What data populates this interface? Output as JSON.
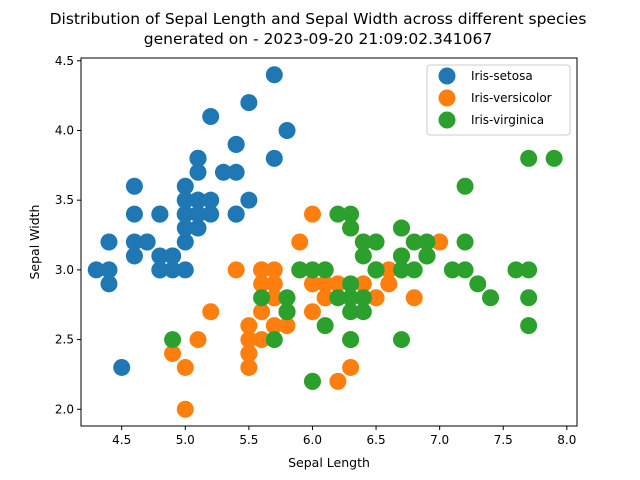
{
  "chart_data": {
    "type": "scatter",
    "title_line1": "Distribution of Sepal Length and Sepal Width across different species",
    "title_line2": "generated on - 2023-09-20 21:09:02.341067",
    "xlabel": "Sepal Length",
    "ylabel": "Sepal Width",
    "xlim": [
      4.18,
      8.08
    ],
    "ylim": [
      1.88,
      4.52
    ],
    "xticks": [
      4.5,
      5.0,
      5.5,
      6.0,
      6.5,
      7.0,
      7.5,
      8.0
    ],
    "xtick_labels": [
      "4.5",
      "5.0",
      "5.5",
      "6.0",
      "6.5",
      "7.0",
      "7.5",
      "8.0"
    ],
    "yticks": [
      2.0,
      2.5,
      3.0,
      3.5,
      4.0,
      4.5
    ],
    "ytick_labels": [
      "2.0",
      "2.5",
      "3.0",
      "3.5",
      "4.0",
      "4.5"
    ],
    "grid": false,
    "legend_position": "top-right",
    "series": [
      {
        "name": "Iris-setosa",
        "color": "#1f77b4",
        "points": [
          [
            5.1,
            3.5
          ],
          [
            4.9,
            3.0
          ],
          [
            4.7,
            3.2
          ],
          [
            4.6,
            3.1
          ],
          [
            5.0,
            3.6
          ],
          [
            5.4,
            3.9
          ],
          [
            4.6,
            3.4
          ],
          [
            5.0,
            3.4
          ],
          [
            4.4,
            2.9
          ],
          [
            4.9,
            3.1
          ],
          [
            5.4,
            3.7
          ],
          [
            4.8,
            3.4
          ],
          [
            4.8,
            3.0
          ],
          [
            4.3,
            3.0
          ],
          [
            5.8,
            4.0
          ],
          [
            5.7,
            4.4
          ],
          [
            5.4,
            3.9
          ],
          [
            5.1,
            3.5
          ],
          [
            5.7,
            3.8
          ],
          [
            5.1,
            3.8
          ],
          [
            5.4,
            3.4
          ],
          [
            5.1,
            3.7
          ],
          [
            4.6,
            3.6
          ],
          [
            5.1,
            3.3
          ],
          [
            4.8,
            3.4
          ],
          [
            5.0,
            3.0
          ],
          [
            5.0,
            3.4
          ],
          [
            5.2,
            3.5
          ],
          [
            5.2,
            3.4
          ],
          [
            4.7,
            3.2
          ],
          [
            4.8,
            3.1
          ],
          [
            5.4,
            3.4
          ],
          [
            5.2,
            4.1
          ],
          [
            5.5,
            4.2
          ],
          [
            4.9,
            3.1
          ],
          [
            5.0,
            3.2
          ],
          [
            5.5,
            3.5
          ],
          [
            4.9,
            3.1
          ],
          [
            4.4,
            3.0
          ],
          [
            5.1,
            3.4
          ],
          [
            5.0,
            3.5
          ],
          [
            4.5,
            2.3
          ],
          [
            4.4,
            3.2
          ],
          [
            5.0,
            3.5
          ],
          [
            5.1,
            3.8
          ],
          [
            4.8,
            3.0
          ],
          [
            5.1,
            3.8
          ],
          [
            4.6,
            3.2
          ],
          [
            5.3,
            3.7
          ],
          [
            5.0,
            3.3
          ]
        ]
      },
      {
        "name": "Iris-versicolor",
        "color": "#ff7f0e",
        "points": [
          [
            7.0,
            3.2
          ],
          [
            6.4,
            3.2
          ],
          [
            6.9,
            3.1
          ],
          [
            5.5,
            2.3
          ],
          [
            6.5,
            2.8
          ],
          [
            5.7,
            2.8
          ],
          [
            6.3,
            3.3
          ],
          [
            4.9,
            2.4
          ],
          [
            6.6,
            2.9
          ],
          [
            5.2,
            2.7
          ],
          [
            5.0,
            2.0
          ],
          [
            5.9,
            3.0
          ],
          [
            6.0,
            2.2
          ],
          [
            6.1,
            2.9
          ],
          [
            5.6,
            2.9
          ],
          [
            6.7,
            3.1
          ],
          [
            5.6,
            3.0
          ],
          [
            5.8,
            2.7
          ],
          [
            6.2,
            2.2
          ],
          [
            5.6,
            2.5
          ],
          [
            5.9,
            3.2
          ],
          [
            6.1,
            2.8
          ],
          [
            6.3,
            2.5
          ],
          [
            6.1,
            2.8
          ],
          [
            6.4,
            2.9
          ],
          [
            6.6,
            3.0
          ],
          [
            6.8,
            2.8
          ],
          [
            6.7,
            3.0
          ],
          [
            6.0,
            2.9
          ],
          [
            5.7,
            2.6
          ],
          [
            5.5,
            2.4
          ],
          [
            5.5,
            2.4
          ],
          [
            5.8,
            2.7
          ],
          [
            6.0,
            2.7
          ],
          [
            5.4,
            3.0
          ],
          [
            6.0,
            3.4
          ],
          [
            6.7,
            3.1
          ],
          [
            6.3,
            2.3
          ],
          [
            5.6,
            3.0
          ],
          [
            5.5,
            2.5
          ],
          [
            5.5,
            2.6
          ],
          [
            6.1,
            3.0
          ],
          [
            5.8,
            2.6
          ],
          [
            5.0,
            2.3
          ],
          [
            5.6,
            2.7
          ],
          [
            5.7,
            3.0
          ],
          [
            5.7,
            2.9
          ],
          [
            6.2,
            2.9
          ],
          [
            5.1,
            2.5
          ],
          [
            5.7,
            2.8
          ]
        ]
      },
      {
        "name": "Iris-virginica",
        "color": "#2ca02c",
        "points": [
          [
            6.3,
            3.3
          ],
          [
            5.8,
            2.7
          ],
          [
            7.1,
            3.0
          ],
          [
            6.3,
            2.9
          ],
          [
            6.5,
            3.0
          ],
          [
            7.6,
            3.0
          ],
          [
            4.9,
            2.5
          ],
          [
            7.3,
            2.9
          ],
          [
            6.7,
            2.5
          ],
          [
            7.2,
            3.6
          ],
          [
            6.5,
            3.2
          ],
          [
            6.4,
            2.7
          ],
          [
            6.8,
            3.0
          ],
          [
            5.7,
            2.5
          ],
          [
            5.8,
            2.8
          ],
          [
            6.4,
            3.2
          ],
          [
            6.5,
            3.0
          ],
          [
            7.7,
            3.8
          ],
          [
            7.7,
            2.6
          ],
          [
            6.0,
            2.2
          ],
          [
            6.9,
            3.2
          ],
          [
            5.6,
            2.8
          ],
          [
            7.7,
            2.8
          ],
          [
            6.3,
            2.7
          ],
          [
            6.7,
            3.3
          ],
          [
            7.2,
            3.2
          ],
          [
            6.2,
            2.8
          ],
          [
            6.1,
            3.0
          ],
          [
            6.4,
            2.8
          ],
          [
            7.2,
            3.0
          ],
          [
            7.4,
            2.8
          ],
          [
            7.9,
            3.8
          ],
          [
            6.4,
            2.8
          ],
          [
            6.3,
            2.8
          ],
          [
            6.1,
            2.6
          ],
          [
            7.7,
            3.0
          ],
          [
            6.3,
            3.4
          ],
          [
            6.4,
            3.1
          ],
          [
            6.0,
            3.0
          ],
          [
            6.9,
            3.1
          ],
          [
            6.7,
            3.1
          ],
          [
            6.9,
            3.1
          ],
          [
            5.8,
            2.7
          ],
          [
            6.8,
            3.2
          ],
          [
            6.7,
            3.3
          ],
          [
            6.7,
            3.0
          ],
          [
            6.3,
            2.5
          ],
          [
            6.5,
            3.0
          ],
          [
            6.2,
            3.4
          ],
          [
            5.9,
            3.0
          ]
        ]
      }
    ]
  }
}
